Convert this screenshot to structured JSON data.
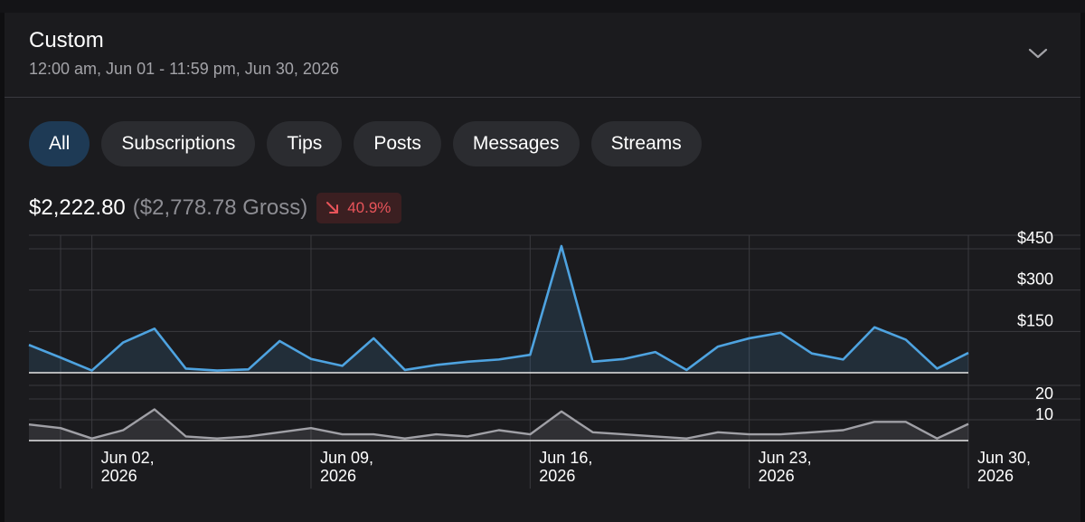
{
  "header": {
    "title": "Custom",
    "date_range": "12:00 am, Jun 01 - 11:59 pm, Jun 30, 2026",
    "chevron_icon": "chevron-down-icon"
  },
  "tabs": [
    {
      "label": "All",
      "active": true
    },
    {
      "label": "Subscriptions",
      "active": false
    },
    {
      "label": "Tips",
      "active": false
    },
    {
      "label": "Posts",
      "active": false
    },
    {
      "label": "Messages",
      "active": false
    },
    {
      "label": "Streams",
      "active": false
    }
  ],
  "summary": {
    "net": "$2,222.80",
    "gross": "($2,778.78 Gross)",
    "change": "40.9%",
    "change_icon": "arrow-down-right-icon"
  },
  "colors": {
    "accent": "#4ea3e0",
    "secondary_line": "#a0a0a6",
    "negative": "#e9545a",
    "active_tab": "#1e3a55"
  },
  "chart_data": [
    {
      "type": "area",
      "x": [
        "2026-06-01",
        "2026-06-02",
        "2026-06-03",
        "2026-06-04",
        "2026-06-05",
        "2026-06-06",
        "2026-06-07",
        "2026-06-08",
        "2026-06-09",
        "2026-06-10",
        "2026-06-11",
        "2026-06-12",
        "2026-06-13",
        "2026-06-14",
        "2026-06-15",
        "2026-06-16",
        "2026-06-17",
        "2026-06-18",
        "2026-06-19",
        "2026-06-20",
        "2026-06-21",
        "2026-06-22",
        "2026-06-23",
        "2026-06-24",
        "2026-06-25",
        "2026-06-26",
        "2026-06-27",
        "2026-06-28",
        "2026-06-29",
        "2026-06-30"
      ],
      "values": [
        55,
        8,
        110,
        160,
        15,
        8,
        12,
        115,
        50,
        25,
        125,
        10,
        28,
        40,
        48,
        65,
        460,
        40,
        50,
        75,
        10,
        95,
        125,
        145,
        70,
        48,
        165,
        120,
        15,
        72
      ],
      "yticks": [
        "$150",
        "$300",
        "$450"
      ],
      "ylim": [
        0,
        480
      ],
      "grid": true
    },
    {
      "type": "area",
      "x": [
        "2026-06-01",
        "2026-06-02",
        "2026-06-03",
        "2026-06-04",
        "2026-06-05",
        "2026-06-06",
        "2026-06-07",
        "2026-06-08",
        "2026-06-09",
        "2026-06-10",
        "2026-06-11",
        "2026-06-12",
        "2026-06-13",
        "2026-06-14",
        "2026-06-15",
        "2026-06-16",
        "2026-06-17",
        "2026-06-18",
        "2026-06-19",
        "2026-06-20",
        "2026-06-21",
        "2026-06-22",
        "2026-06-23",
        "2026-06-24",
        "2026-06-25",
        "2026-06-26",
        "2026-06-27",
        "2026-06-28",
        "2026-06-29",
        "2026-06-30"
      ],
      "values": [
        6,
        1,
        5,
        15,
        2,
        1,
        2,
        4,
        6,
        3,
        3,
        1,
        3,
        2,
        5,
        3,
        14,
        4,
        3,
        2,
        1,
        4,
        3,
        3,
        4,
        5,
        9,
        9,
        1,
        8
      ],
      "yticks": [
        "10",
        "20"
      ],
      "ylim": [
        0,
        24
      ],
      "grid": true
    }
  ],
  "x_ticks": [
    {
      "date": "2026-06-02",
      "line1": "Jun 02,",
      "line2": "2026"
    },
    {
      "date": "2026-06-09",
      "line1": "Jun 09,",
      "line2": "2026"
    },
    {
      "date": "2026-06-16",
      "line1": "Jun 16,",
      "line2": "2026"
    },
    {
      "date": "2026-06-23",
      "line1": "Jun 23,",
      "line2": "2026"
    },
    {
      "date": "2026-06-30",
      "line1": "Jun 30,",
      "line2": "2026"
    }
  ]
}
